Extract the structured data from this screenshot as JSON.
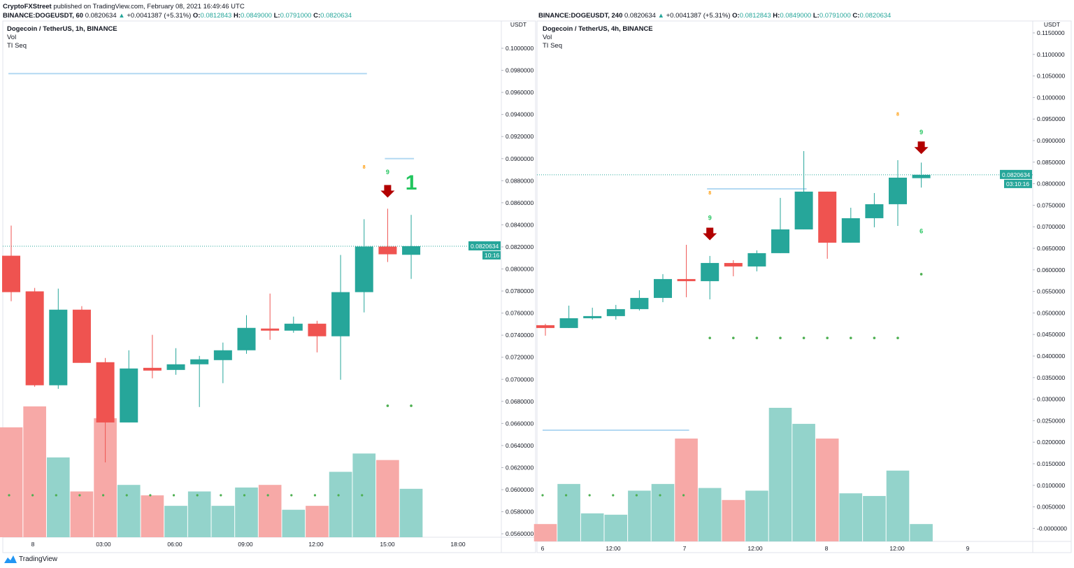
{
  "publish_line": {
    "author": "CryptoFXStreet",
    "text": "published on TradingView.com, February 08, 2021 16:49:46 UTC"
  },
  "colors": {
    "up": "#26a69a",
    "down": "#ef5350",
    "vol_up": "#93d3cb",
    "vol_down": "#f7a9a7",
    "td_green": "#22c55e",
    "arrow_red": "#b20000",
    "td_orange": "#ff9800",
    "level_line": "#b3d9f2"
  },
  "panes": [
    {
      "symbol": "BINANCE:DOGEUSDT, 60",
      "last": "0.0820634",
      "change": "+0.0041387 (+5.31%)",
      "ohlc": {
        "O": "0.0812843",
        "H": "0.0849000",
        "L": "0.0791000",
        "C": "0.0820634"
      },
      "title": "Dogecoin / TetherUS, 1h, BINANCE",
      "studies": [
        "Vol",
        "TI Seq"
      ],
      "axis_unit": "USDT",
      "price_label": "0.0820634",
      "countdown": "10:16",
      "y_ticks": [
        "0.1000000",
        "0.0980000",
        "0.0960000",
        "0.0940000",
        "0.0920000",
        "0.0900000",
        "0.0880000",
        "0.0860000",
        "0.0840000",
        "0.0820000",
        "0.0800000",
        "0.0780000",
        "0.0760000",
        "0.0740000",
        "0.0720000",
        "0.0700000",
        "0.0680000",
        "0.0660000",
        "0.0640000",
        "0.0620000",
        "0.0600000",
        "0.0580000",
        "0.0560000"
      ],
      "x_ticks": [
        "8",
        "03:00",
        "06:00",
        "09:00",
        "12:00",
        "15:00",
        "18:00"
      ],
      "candles": [
        [
          0.0812,
          0.08393,
          0.07708,
          0.0779
        ],
        [
          0.07797,
          0.07828,
          0.06933,
          0.06946
        ],
        [
          0.06946,
          0.07822,
          0.06914,
          0.07631
        ],
        [
          0.07631,
          0.07663,
          0.07149,
          0.07149
        ],
        [
          0.07155,
          0.07193,
          0.06247,
          0.06609
        ],
        [
          0.06609,
          0.07263,
          0.06609,
          0.07098
        ],
        [
          0.07104,
          0.07403,
          0.07009,
          0.07079
        ],
        [
          0.07085,
          0.07282,
          0.07041,
          0.07136
        ],
        [
          0.07136,
          0.07212,
          0.06749,
          0.07181
        ],
        [
          0.07174,
          0.07333,
          0.06965,
          0.07263
        ],
        [
          0.07263,
          0.07581,
          0.07231,
          0.07466
        ],
        [
          0.0746,
          0.07777,
          0.07358,
          0.07441
        ],
        [
          0.07441,
          0.07568,
          0.07422,
          0.07504
        ],
        [
          0.07504,
          0.0753,
          0.07244,
          0.0739
        ],
        [
          0.0739,
          0.08127,
          0.06996,
          0.0779
        ],
        [
          0.0779,
          0.08451,
          0.07606,
          0.08203
        ],
        [
          0.08203,
          0.08546,
          0.08063,
          0.08133
        ],
        [
          0.0812843,
          0.0849,
          0.0791,
          0.0820634
        ]
      ],
      "volume_relative": [
        84,
        100,
        61,
        35,
        91,
        40,
        32,
        24,
        35,
        24,
        38,
        40,
        21,
        24,
        50,
        64,
        59,
        37
      ],
      "td_markers": [
        {
          "bar": 15,
          "type": "small",
          "label": "8",
          "price": 0.0891
        },
        {
          "bar": 16,
          "type": "nine",
          "label": "9",
          "price": 0.0886
        },
        {
          "bar": 16,
          "type": "arrow",
          "price": 0.0871
        },
        {
          "bar": 17,
          "type": "big",
          "label": "1",
          "price": 0.0872
        }
      ],
      "support_dots": [
        {
          "bars": [
            16,
            17
          ],
          "price": 0.0676
        }
      ],
      "vol_dots_bars": [
        0,
        1,
        2,
        3,
        4,
        5,
        6,
        7,
        8,
        9,
        10,
        11,
        12,
        13,
        14,
        15
      ],
      "levels": [
        {
          "price": 0.0977,
          "from": 0,
          "to": 15
        },
        {
          "price": 0.09,
          "from": 16,
          "to": 17
        }
      ]
    },
    {
      "symbol": "BINANCE:DOGEUSDT, 240",
      "last": "0.0820634",
      "change": "+0.0041387 (+5.31%)",
      "ohlc": {
        "O": "0.0812843",
        "H": "0.0849000",
        "L": "0.0791000",
        "C": "0.0820634"
      },
      "title": "Dogecoin / TetherUS, 4h, BINANCE",
      "studies": [
        "Vol",
        "TI Seq"
      ],
      "axis_unit": "USDT",
      "price_label": "0.0820634",
      "countdown": "03:10:16",
      "y_ticks": [
        "0.1150000",
        "0.1100000",
        "0.1050000",
        "0.1000000",
        "0.0950000",
        "0.0900000",
        "0.0850000",
        "0.0800000",
        "0.0750000",
        "0.0700000",
        "0.0650000",
        "0.0600000",
        "0.0550000",
        "0.0500000",
        "0.0450000",
        "0.0400000",
        "0.0350000",
        "0.0300000",
        "0.0250000",
        "0.0200000",
        "0.0150000",
        "0.0100000",
        "0.0050000",
        "-0.0000000"
      ],
      "x_ticks": [
        "6",
        "12:00",
        "7",
        "12:00",
        "8",
        "12:00",
        "9"
      ],
      "candles": [
        [
          0.04716,
          0.04748,
          0.04472,
          0.04651
        ],
        [
          0.04651,
          0.0517,
          0.04651,
          0.04878
        ],
        [
          0.04878,
          0.05122,
          0.04846,
          0.04927
        ],
        [
          0.04927,
          0.05187,
          0.04846,
          0.05089
        ],
        [
          0.05089,
          0.05527,
          0.05057,
          0.05349
        ],
        [
          0.05349,
          0.05901,
          0.05251,
          0.05787
        ],
        [
          0.05787,
          0.06582,
          0.05365,
          0.05738
        ],
        [
          0.05738,
          0.06323,
          0.05316,
          0.0616
        ],
        [
          0.0616,
          0.06225,
          0.05852,
          0.06079
        ],
        [
          0.06079,
          0.06452,
          0.05966,
          0.06388
        ],
        [
          0.06388,
          0.0767,
          0.06388,
          0.06939
        ],
        [
          0.06939,
          0.08757,
          0.06939,
          0.07816
        ],
        [
          0.07816,
          0.07816,
          0.06258,
          0.06631
        ],
        [
          0.06631,
          0.07442,
          0.06631,
          0.07199
        ],
        [
          0.07199,
          0.07783,
          0.06988,
          0.07524
        ],
        [
          0.07524,
          0.08546,
          0.0702,
          0.0814
        ],
        [
          0.0812843,
          0.0849,
          0.0791,
          0.0820634
        ]
      ],
      "volume_relative": [
        13,
        43,
        21,
        20,
        38,
        43,
        77,
        40,
        31,
        38,
        100,
        88,
        77,
        36,
        34,
        53,
        13
      ],
      "td_markers": [
        {
          "bar": 7,
          "type": "small",
          "label": "8",
          "price": 0.0775
        },
        {
          "bar": 7,
          "type": "nine",
          "label": "9",
          "price": 0.0716
        },
        {
          "bar": 7,
          "type": "arrow",
          "price": 0.0685
        },
        {
          "bar": 15,
          "type": "small",
          "label": "8",
          "price": 0.0958
        },
        {
          "bar": 16,
          "type": "nine",
          "label": "9",
          "price": 0.0915
        },
        {
          "bar": 16,
          "type": "arrow",
          "price": 0.0885
        },
        {
          "bar": 16,
          "type": "nine",
          "label": "6",
          "price": 0.0685
        }
      ],
      "support_dots": [
        {
          "bars": [
            7,
            8,
            9,
            10,
            11,
            12,
            13,
            14,
            15
          ],
          "price": 0.0442
        },
        {
          "bars": [
            16
          ],
          "price": 0.059
        }
      ],
      "vol_dots_bars": [
        0,
        1,
        2,
        3,
        4,
        5,
        6
      ],
      "levels": [
        {
          "price": 0.0788,
          "from": 7,
          "to": 11
        },
        {
          "price": 0.0228,
          "from": 0,
          "to": 6
        }
      ]
    }
  ],
  "footer": {
    "brand": "TradingView"
  }
}
